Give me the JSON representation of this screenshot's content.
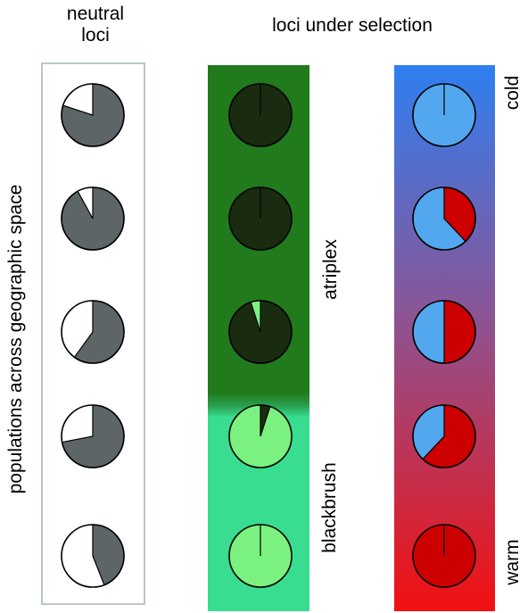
{
  "header": {
    "neutral_line1": "neutral",
    "neutral_line2": "loci",
    "selection": "loci under selection"
  },
  "axis_label": "populations across geographic space",
  "habitat_labels": {
    "atriplex": "atriplex",
    "blackbrush": "blackbrush"
  },
  "temperature_labels": {
    "cold": "cold",
    "warm": "warm"
  },
  "colors": {
    "neutral_primary": "#5e6567",
    "neutral_secondary": "#ffffff",
    "neutral_border": "#b9c7c3",
    "atriplex_bg": "#217a1c",
    "blackbrush_bg": "#38dd91",
    "dark_allele": "#1a2c10",
    "light_allele": "#7bf27f",
    "cold_allele": "#53a7ee",
    "warm_allele": "#cc0000",
    "gradient_top": "#2f7ff0",
    "gradient_mid": "#8a5596",
    "gradient_bottom": "#f21010"
  },
  "neutral_loci": [
    {
      "population": 1,
      "primary_fraction": 0.8
    },
    {
      "population": 2,
      "primary_fraction": 0.92
    },
    {
      "population": 3,
      "primary_fraction": 0.6
    },
    {
      "population": 4,
      "primary_fraction": 0.72
    },
    {
      "population": 5,
      "primary_fraction": 0.44
    }
  ],
  "habitat_loci": [
    {
      "population": 1,
      "habitat": "atriplex",
      "dark_fraction": 1.0
    },
    {
      "population": 2,
      "habitat": "atriplex",
      "dark_fraction": 1.0
    },
    {
      "population": 3,
      "habitat": "atriplex",
      "dark_fraction": 0.95
    },
    {
      "population": 4,
      "habitat": "blackbrush",
      "dark_fraction": 0.05
    },
    {
      "population": 5,
      "habitat": "blackbrush",
      "dark_fraction": 0.0
    }
  ],
  "temperature_loci": [
    {
      "population": 1,
      "warm_fraction": 0.0
    },
    {
      "population": 2,
      "warm_fraction": 0.38
    },
    {
      "population": 3,
      "warm_fraction": 0.5
    },
    {
      "population": 4,
      "warm_fraction": 0.62
    },
    {
      "population": 5,
      "warm_fraction": 1.0
    }
  ]
}
